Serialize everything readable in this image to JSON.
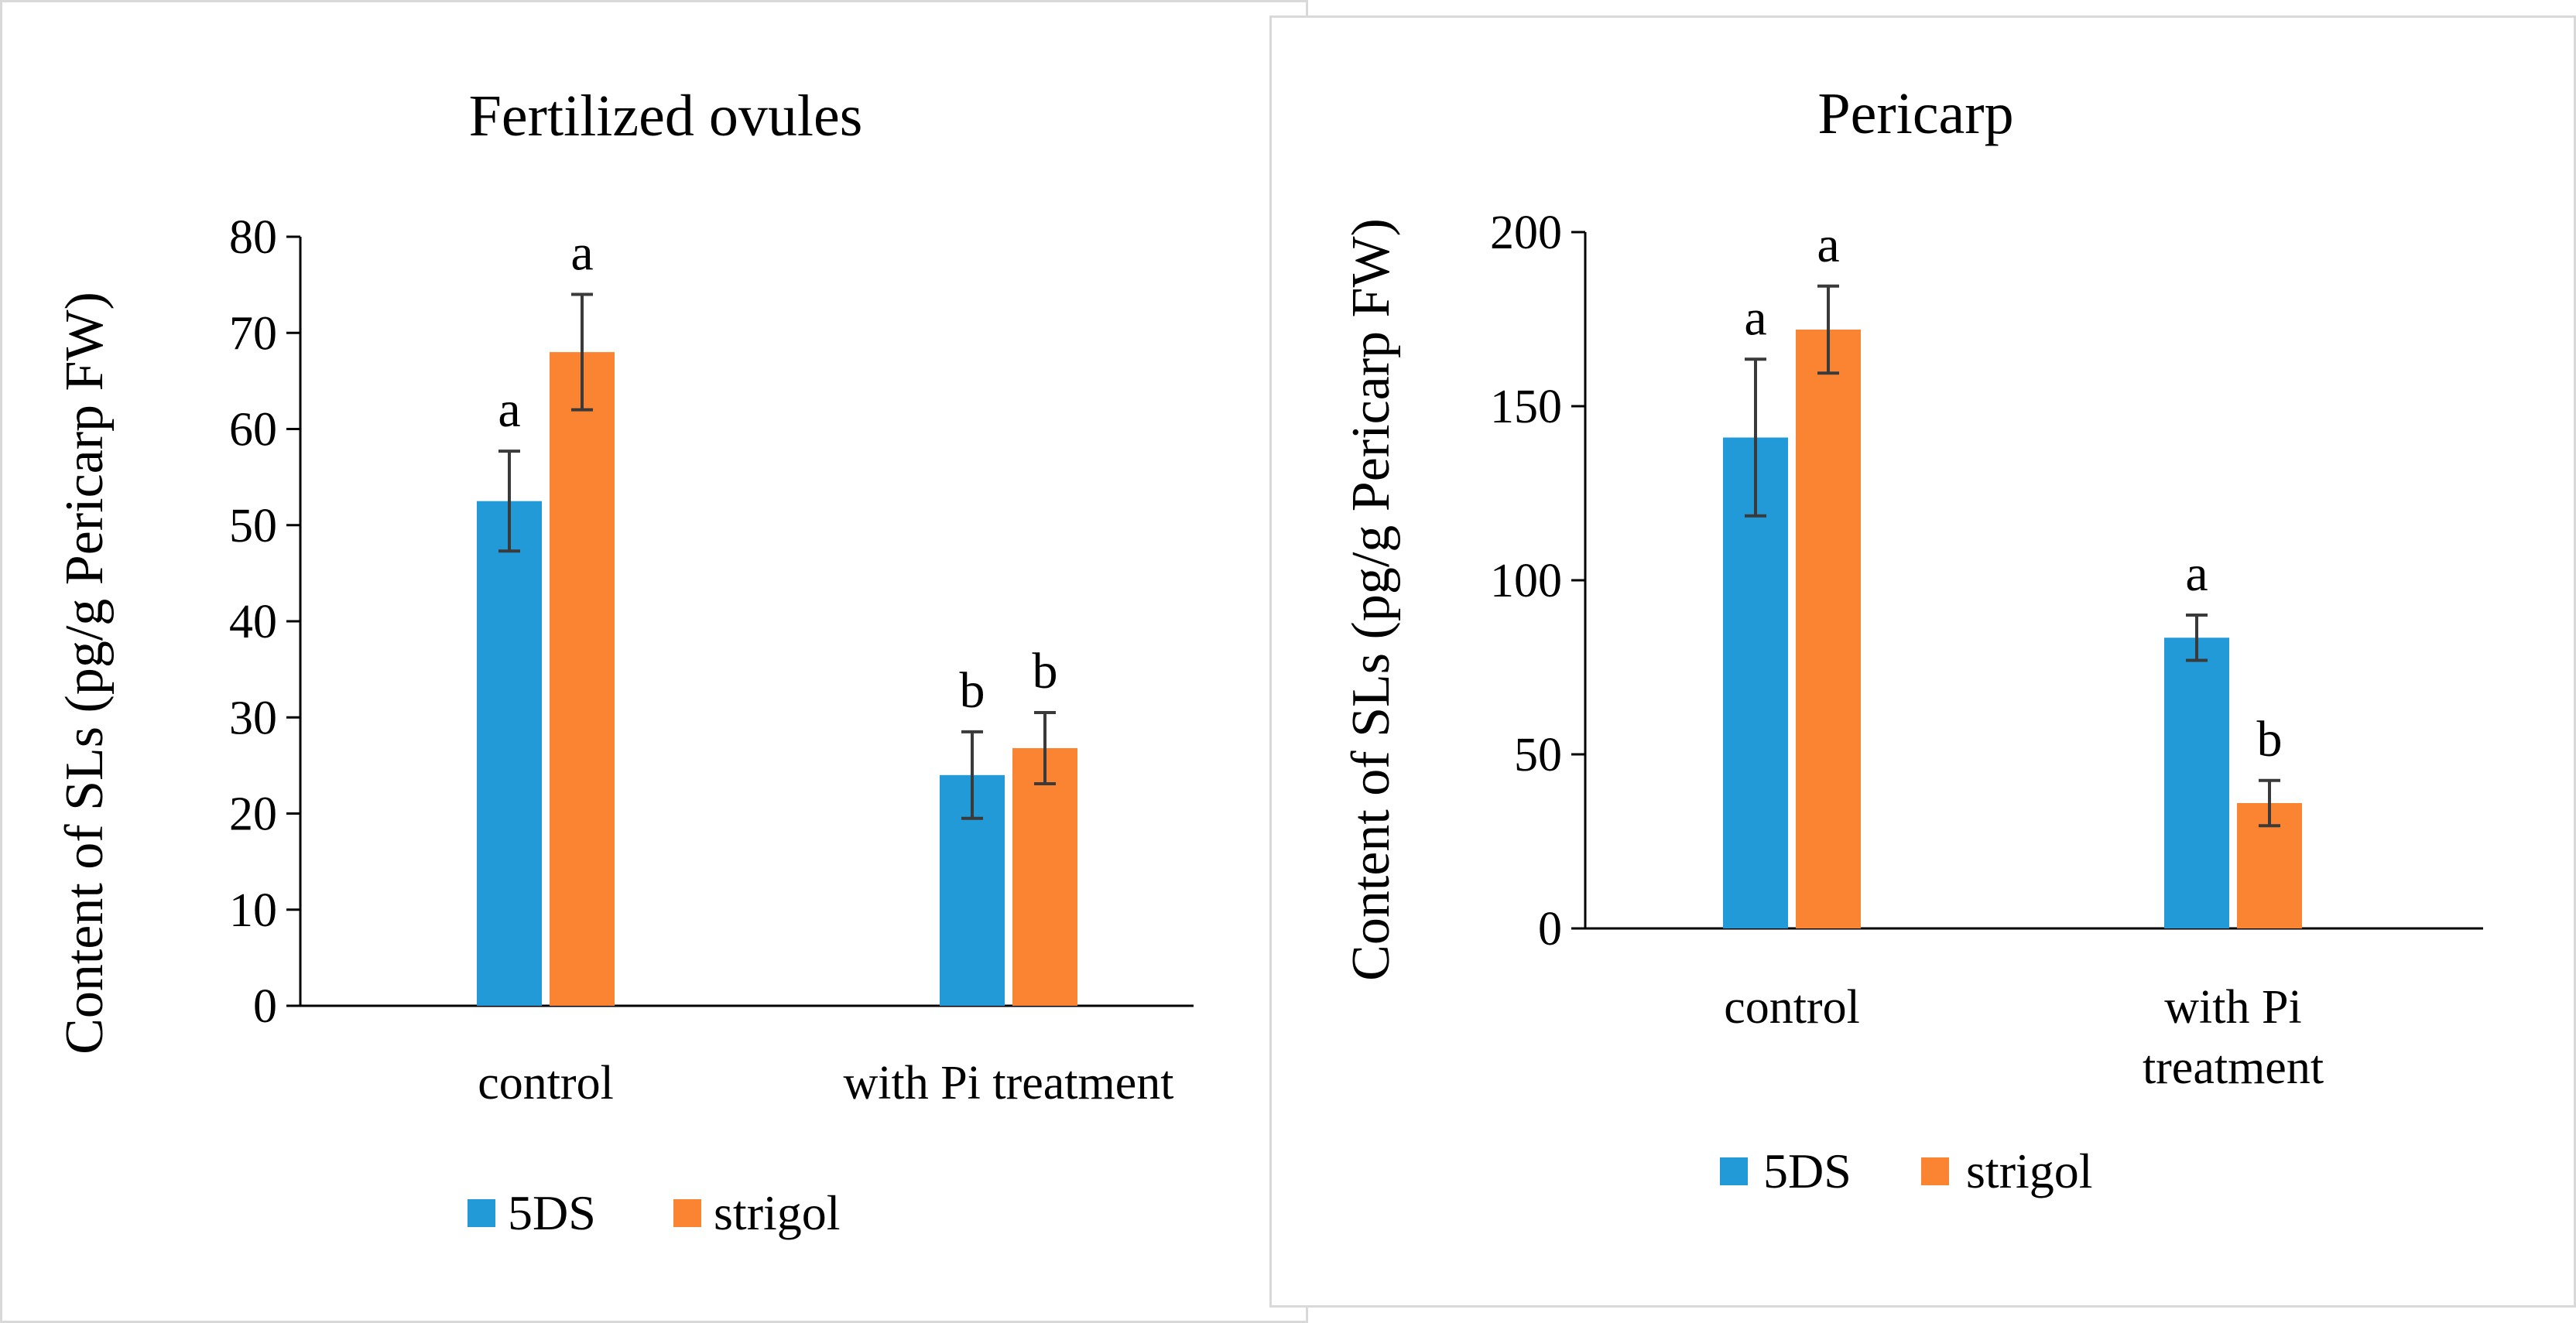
{
  "colors": {
    "series_5ds": "#229ad8",
    "series_strigol": "#fb8432",
    "axis": "#000000",
    "error_bar": "#3a3a3a",
    "frame": "#d9d9d9"
  },
  "chart_data": [
    {
      "type": "bar",
      "title": "Fertilized ovules",
      "xlabel": "",
      "ylabel": "Content of SLs (pg/g Pericarp FW)",
      "categories": [
        "control",
        "with Pi treatment"
      ],
      "category_lines": [
        [
          "control"
        ],
        [
          "with Pi treatment"
        ]
      ],
      "ylim": [
        0,
        80
      ],
      "yticks": [
        0,
        10,
        20,
        30,
        40,
        50,
        60,
        70,
        80
      ],
      "grid": false,
      "legend_position": "bottom",
      "series": [
        {
          "name": "5DS",
          "color": "#229ad8",
          "values": [
            52.5,
            24
          ],
          "errors": [
            5.2,
            4.5
          ],
          "labels": [
            "a",
            "b"
          ]
        },
        {
          "name": "strigol",
          "color": "#fb8432",
          "values": [
            68,
            26.8
          ],
          "errors": [
            6,
            3.7
          ],
          "labels": [
            "a",
            "b"
          ]
        }
      ]
    },
    {
      "type": "bar",
      "title": "Pericarp",
      "xlabel": "",
      "ylabel": "Content of SLs (pg/g Pericarp FW)",
      "categories": [
        "control",
        "with Pi treatment"
      ],
      "category_lines": [
        [
          "control"
        ],
        [
          "with Pi",
          "treatment"
        ]
      ],
      "ylim": [
        0,
        200
      ],
      "yticks": [
        0,
        50,
        100,
        150,
        200
      ],
      "grid": false,
      "legend_position": "bottom",
      "series": [
        {
          "name": "5DS",
          "color": "#229ad8",
          "values": [
            141,
            83.5
          ],
          "errors": [
            22.5,
            6.5
          ],
          "labels": [
            "a",
            "a"
          ]
        },
        {
          "name": "strigol",
          "color": "#fb8432",
          "values": [
            172,
            36
          ],
          "errors": [
            12.5,
            6.5
          ],
          "labels": [
            "a",
            "b"
          ]
        }
      ]
    }
  ]
}
